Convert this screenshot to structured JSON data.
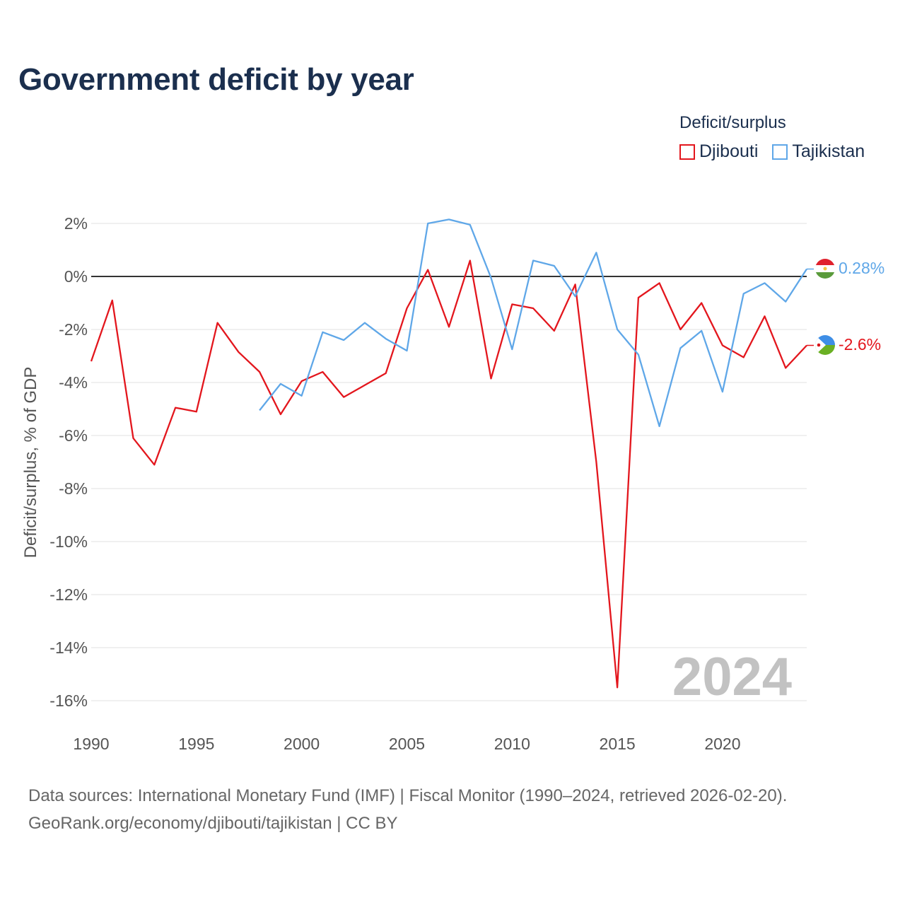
{
  "chart_data": {
    "type": "line",
    "title": "Government deficit by year",
    "legend_title": "Deficit/surplus",
    "ylabel": "Deficit/surplus, % of GDP",
    "xlabel": "",
    "ylim": [
      -17,
      2.7
    ],
    "xlim": [
      1990,
      2024
    ],
    "x_ticks": [
      1990,
      1995,
      2000,
      2005,
      2010,
      2015,
      2020
    ],
    "y_ticks": [
      2,
      0,
      -2,
      -4,
      -6,
      -8,
      -10,
      -12,
      -14,
      -16
    ],
    "y_tick_labels": [
      "2%",
      "0%",
      "-2%",
      "-4%",
      "-6%",
      "-8%",
      "-10%",
      "-12%",
      "-14%",
      "-16%"
    ],
    "watermark_year": "2024",
    "legend_position": "top-right",
    "series": [
      {
        "name": "Djibouti",
        "color": "#e3161d",
        "end_label": "-2.6%",
        "flag_icon": "djibouti-flag-icon",
        "x": [
          1990,
          1991,
          1992,
          1993,
          1994,
          1995,
          1996,
          1997,
          1998,
          1999,
          2000,
          2001,
          2002,
          2003,
          2004,
          2005,
          2006,
          2007,
          2008,
          2009,
          2010,
          2011,
          2012,
          2013,
          2014,
          2015,
          2016,
          2017,
          2018,
          2019,
          2020,
          2021,
          2022,
          2023,
          2024
        ],
        "values": [
          -3.2,
          -0.9,
          -6.1,
          -7.1,
          -4.95,
          -5.1,
          -1.75,
          -2.85,
          -3.6,
          -5.2,
          -3.95,
          -3.6,
          -4.55,
          -4.1,
          -3.65,
          -1.2,
          0.25,
          -1.9,
          0.6,
          -3.85,
          -1.05,
          -1.2,
          -2.05,
          -0.3,
          -7.0,
          -15.5,
          -0.8,
          -0.25,
          -2.0,
          -1.0,
          -2.6,
          -3.05,
          -1.5,
          -3.45,
          -2.6
        ]
      },
      {
        "name": "Tajikistan",
        "color": "#5fa7e8",
        "end_label": "0.28%",
        "flag_icon": "tajikistan-flag-icon",
        "x": [
          1998,
          1999,
          2000,
          2001,
          2002,
          2003,
          2004,
          2005,
          2006,
          2007,
          2008,
          2009,
          2010,
          2011,
          2012,
          2013,
          2014,
          2015,
          2016,
          2017,
          2018,
          2019,
          2020,
          2021,
          2022,
          2023,
          2024
        ],
        "values": [
          -5.05,
          -4.05,
          -4.5,
          -2.1,
          -2.4,
          -1.75,
          -2.35,
          -2.8,
          2.0,
          2.15,
          1.95,
          -0.05,
          -2.75,
          0.6,
          0.4,
          -0.75,
          0.9,
          -2.0,
          -2.95,
          -5.65,
          -2.7,
          -2.05,
          -4.35,
          -0.65,
          -0.25,
          -0.95,
          0.28
        ]
      }
    ]
  },
  "source": {
    "line1": "Data sources: International Monetary Fund (IMF) | Fiscal Monitor (1990–2024, retrieved 2026-02-20).",
    "line2": "GeoRank.org/economy/djibouti/tajikistan | CC BY"
  }
}
